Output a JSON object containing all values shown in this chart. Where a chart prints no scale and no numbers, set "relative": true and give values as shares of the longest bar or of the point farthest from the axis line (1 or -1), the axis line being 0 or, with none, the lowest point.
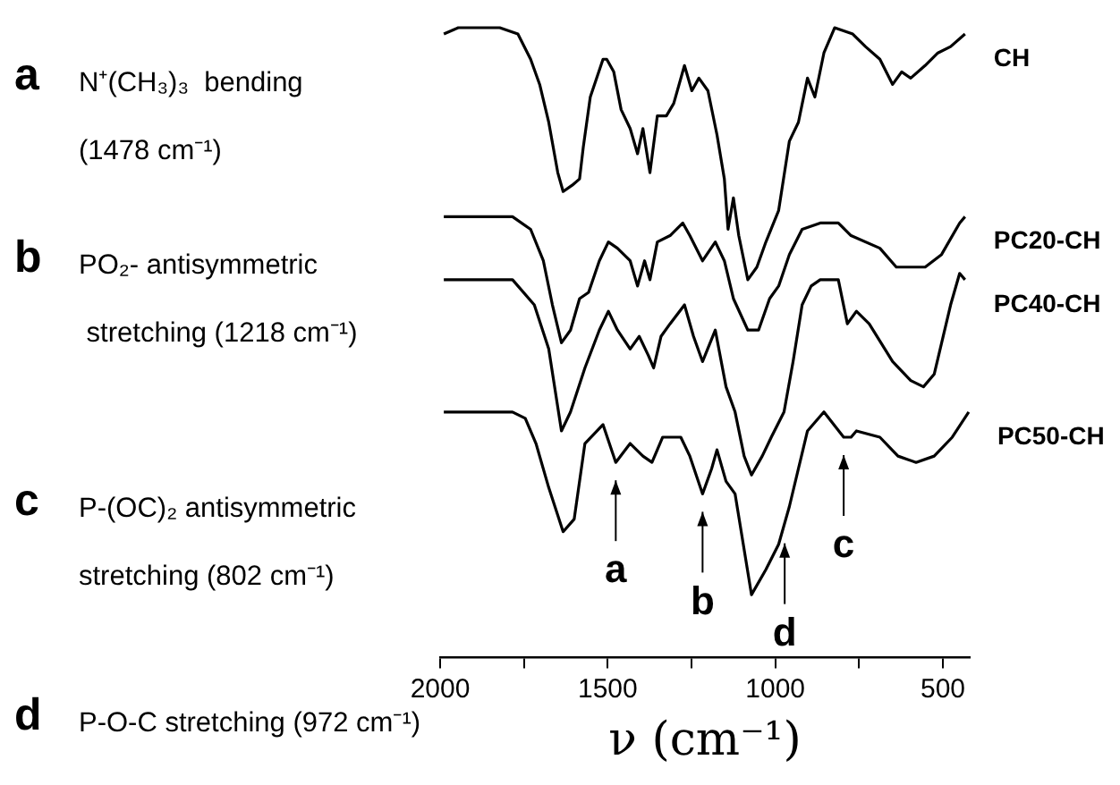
{
  "chart_data": {
    "type": "line",
    "relative": true,
    "xlabel": "ν (cm⁻¹)",
    "xlim": [
      2000,
      420
    ],
    "xticks": [
      2000,
      {
        "value": 1750,
        "label": null
      },
      1500,
      {
        "value": 1250,
        "label": null
      },
      1000,
      {
        "value": 750,
        "label": null
      },
      500
    ],
    "tick_labels": "x",
    "grid": false,
    "legend": false,
    "marker": "none",
    "line_style": "solid",
    "series": [
      {
        "name": "CH",
        "color": "#000000",
        "x": [
          1989,
          1946,
          1822,
          1768,
          1730,
          1703,
          1676,
          1649,
          1633,
          1606,
          1584,
          1573,
          1552,
          1514,
          1503,
          1482,
          1460,
          1433,
          1411,
          1395,
          1374,
          1352,
          1325,
          1303,
          1271,
          1249,
          1228,
          1201,
          1174,
          1152,
          1141,
          1125,
          1109,
          1082,
          1055,
          1028,
          990,
          958,
          931,
          904,
          882,
          855,
          823,
          769,
          731,
          688,
          650,
          623,
          596,
          553,
          515,
          477,
          434
        ],
        "values": [
          0.99,
          1.0,
          1.0,
          0.99,
          0.95,
          0.91,
          0.85,
          0.77,
          0.74,
          0.75,
          0.76,
          0.81,
          0.89,
          0.95,
          0.95,
          0.93,
          0.87,
          0.84,
          0.8,
          0.84,
          0.77,
          0.86,
          0.86,
          0.88,
          0.94,
          0.9,
          0.92,
          0.9,
          0.83,
          0.76,
          0.68,
          0.73,
          0.67,
          0.6,
          0.62,
          0.66,
          0.71,
          0.82,
          0.85,
          0.92,
          0.89,
          0.96,
          1.0,
          0.99,
          0.97,
          0.95,
          0.91,
          0.93,
          0.92,
          0.94,
          0.96,
          0.97,
          0.99
        ]
      },
      {
        "name": "PC20-CH",
        "color": "#000000",
        "x": [
          1989,
          1784,
          1730,
          1692,
          1665,
          1638,
          1611,
          1584,
          1557,
          1525,
          1498,
          1471,
          1433,
          1411,
          1390,
          1374,
          1352,
          1314,
          1276,
          1255,
          1217,
          1179,
          1152,
          1125,
          1082,
          1050,
          1017,
          990,
          958,
          920,
          866,
          812,
          774,
          688,
          639,
          553,
          504,
          450,
          434
        ],
        "values": [
          0.7,
          0.7,
          0.68,
          0.63,
          0.56,
          0.5,
          0.52,
          0.57,
          0.58,
          0.63,
          0.66,
          0.65,
          0.63,
          0.59,
          0.63,
          0.6,
          0.66,
          0.67,
          0.69,
          0.67,
          0.63,
          0.66,
          0.63,
          0.57,
          0.52,
          0.52,
          0.57,
          0.59,
          0.64,
          0.68,
          0.69,
          0.69,
          0.67,
          0.65,
          0.62,
          0.62,
          0.64,
          0.69,
          0.7
        ]
      },
      {
        "name": "PC40-CH",
        "color": "#000000",
        "x": [
          1989,
          1784,
          1719,
          1676,
          1638,
          1611,
          1568,
          1525,
          1498,
          1471,
          1433,
          1406,
          1379,
          1363,
          1341,
          1314,
          1271,
          1244,
          1217,
          1179,
          1147,
          1120,
          1093,
          1071,
          1039,
          1012,
          974,
          947,
          920,
          893,
          866,
          812,
          785,
          758,
          720,
          650,
          596,
          558,
          526,
          477,
          450,
          434
        ],
        "values": [
          0.6,
          0.6,
          0.56,
          0.49,
          0.36,
          0.39,
          0.46,
          0.52,
          0.55,
          0.52,
          0.49,
          0.51,
          0.48,
          0.46,
          0.51,
          0.53,
          0.56,
          0.51,
          0.47,
          0.52,
          0.43,
          0.39,
          0.32,
          0.29,
          0.32,
          0.35,
          0.39,
          0.47,
          0.56,
          0.59,
          0.6,
          0.6,
          0.53,
          0.55,
          0.53,
          0.47,
          0.44,
          0.43,
          0.45,
          0.56,
          0.61,
          0.6
        ]
      },
      {
        "name": "PC50-CH",
        "color": "#000000",
        "x": [
          1989,
          1784,
          1746,
          1714,
          1676,
          1633,
          1600,
          1568,
          1514,
          1476,
          1433,
          1395,
          1368,
          1336,
          1282,
          1255,
          1217,
          1190,
          1174,
          1147,
          1120,
          1071,
          1028,
          990,
          958,
          931,
          904,
          855,
          796,
          774,
          758,
          688,
          634,
          580,
          526,
          472,
          423
        ],
        "values": [
          0.39,
          0.39,
          0.38,
          0.34,
          0.27,
          0.2,
          0.22,
          0.34,
          0.37,
          0.31,
          0.34,
          0.32,
          0.31,
          0.35,
          0.35,
          0.32,
          0.26,
          0.3,
          0.33,
          0.28,
          0.26,
          0.1,
          0.14,
          0.18,
          0.24,
          0.3,
          0.36,
          0.39,
          0.35,
          0.35,
          0.36,
          0.35,
          0.32,
          0.31,
          0.32,
          0.35,
          0.39
        ]
      }
    ],
    "annotations": [
      {
        "text": "a",
        "x": 1476,
        "y": 0.31
      },
      {
        "text": "b",
        "x": 1217,
        "y": 0.26
      },
      {
        "text": "d",
        "x": 972,
        "y": 0.21
      },
      {
        "text": "c",
        "x": 796,
        "y": 0.35
      },
      "a N⁺(CH₃)₃  bending\n(1478 cm⁻¹)",
      "b PO₂- antisymmetric\n stretching (1218 cm⁻¹)",
      "c P-(OC)₂ antisymmetric\nstretching (802 cm⁻¹)",
      "d P-O-C stretching (972 cm⁻¹)"
    ]
  }
}
